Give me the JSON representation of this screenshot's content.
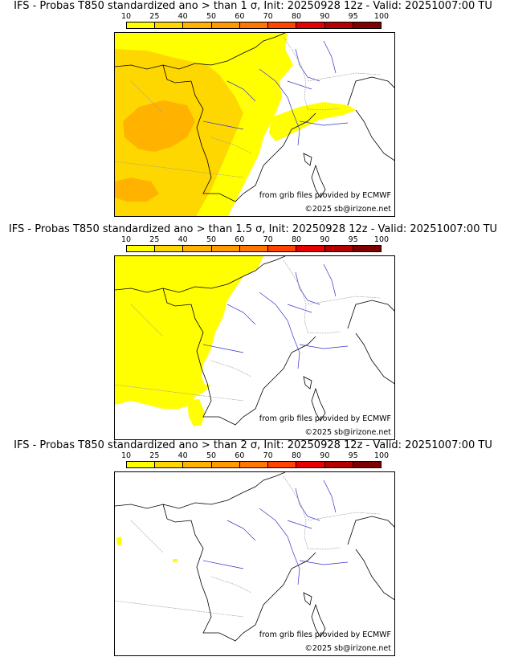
{
  "panels": [
    {
      "title": "IFS - Probas T850  standardized ano > than 1 σ, Init: 20250928 12z - Valid: 20251007:00 TU",
      "threshold_sigma": 1,
      "source_text": "from grib files provided by ECMWF",
      "copyright_text": "©2025 sb@irizone.net"
    },
    {
      "title": "IFS - Probas T850  standardized ano > than 1.5 σ, Init: 20250928 12z - Valid: 20251007:00 TU",
      "threshold_sigma": 1.5,
      "source_text": "from grib files provided by ECMWF",
      "copyright_text": "©2025 sb@irizone.net"
    },
    {
      "title": "IFS - Probas T850  standardized ano > than 2 σ, Init: 20250928 12z - Valid: 20251007:00 TU",
      "threshold_sigma": 2,
      "source_text": "from grib files provided by ECMWF",
      "copyright_text": "©2025 sb@irizone.net"
    }
  ],
  "colorbar": {
    "ticks": [
      "10",
      "25",
      "40",
      "50",
      "60",
      "70",
      "80",
      "90",
      "95",
      "100"
    ],
    "colors": [
      "#ffff00",
      "#ffd700",
      "#ffb300",
      "#ff9900",
      "#ff7700",
      "#ff4400",
      "#e60000",
      "#b30000",
      "#800000"
    ]
  }
}
